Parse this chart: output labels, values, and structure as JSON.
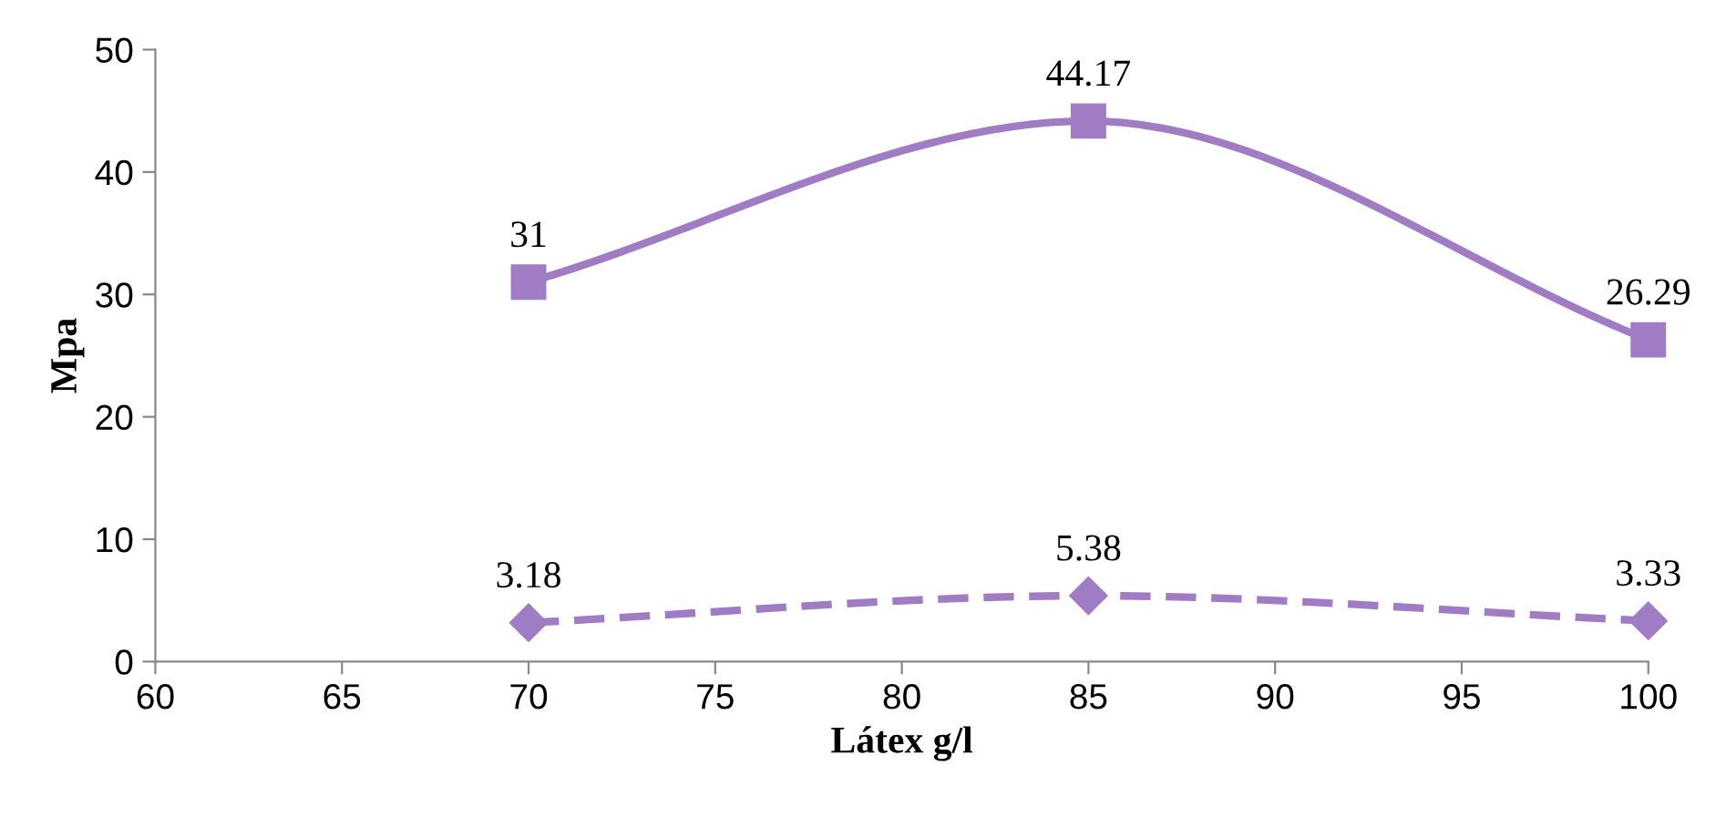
{
  "chart_data": {
    "type": "line",
    "xlabel": "Látex g/l",
    "ylabel": "Mpa",
    "x": [
      70,
      85,
      100
    ],
    "series": [
      {
        "color": "#a07cc5",
        "values": [
          31,
          44.17,
          26.29
        ],
        "marker": "square",
        "line_style": "solid"
      },
      {
        "color": "#a07cc5",
        "values": [
          3.18,
          5.38,
          3.33
        ],
        "marker": "diamond",
        "line_style": "dashed"
      }
    ],
    "xlim": [
      60,
      100
    ],
    "xticks": [
      60,
      65,
      70,
      75,
      80,
      85,
      90,
      95,
      100
    ],
    "ylim": [
      0,
      50
    ],
    "yticks": [
      0,
      10,
      20,
      30,
      40,
      50
    ],
    "grid": false,
    "legend": false,
    "data_labels": true
  }
}
